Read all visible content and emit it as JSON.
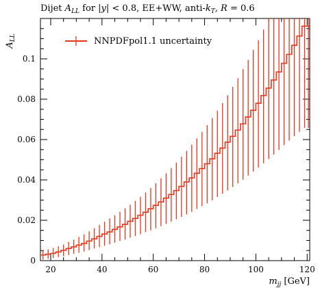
{
  "chart_data": {
    "type": "line",
    "title": "Dijet A_LL for |y| < 0.8, EE+WW, anti-k_T, R = 0.6",
    "xlabel": "m_jj [GeV]",
    "ylabel": "A_LL",
    "xlim": [
      16,
      121
    ],
    "ylim": [
      0,
      0.12
    ],
    "x_ticks": [
      20,
      40,
      60,
      80,
      100,
      120
    ],
    "y_ticks": [
      0,
      0.02,
      0.04,
      0.06,
      0.08,
      0.1
    ],
    "x_tick_labels": [
      "20",
      "40",
      "60",
      "80",
      "100",
      "120"
    ],
    "y_tick_labels": [
      "0",
      "0.02",
      "0.04",
      "0.06",
      "0.08",
      "0.1"
    ],
    "legend": {
      "position": "top-left",
      "entries": [
        "NNPDFpol1.1 uncertainty"
      ]
    },
    "series": [
      {
        "name": "NNPDFpol1.1 uncertainty",
        "color": "#e8351a",
        "bin_edges": [
          16,
          18,
          20,
          22,
          24,
          26,
          28,
          30,
          32,
          34,
          36,
          38,
          40,
          42,
          44,
          46,
          48,
          50,
          52,
          54,
          56,
          58,
          60,
          62,
          64,
          66,
          68,
          70,
          72,
          74,
          76,
          78,
          80,
          82,
          84,
          86,
          88,
          90,
          92,
          94,
          96,
          98,
          100,
          102,
          104,
          106,
          108,
          110,
          112,
          114,
          116,
          118,
          120,
          121
        ],
        "central": [
          0.0028,
          0.0032,
          0.0036,
          0.0043,
          0.0051,
          0.006,
          0.0068,
          0.0077,
          0.0085,
          0.0097,
          0.0108,
          0.012,
          0.0132,
          0.0142,
          0.0155,
          0.0167,
          0.018,
          0.0195,
          0.0209,
          0.0225,
          0.024,
          0.0257,
          0.0274,
          0.0291,
          0.031,
          0.0328,
          0.0347,
          0.0368,
          0.039,
          0.041,
          0.0433,
          0.0456,
          0.048,
          0.0505,
          0.0532,
          0.0558,
          0.0587,
          0.0616,
          0.0647,
          0.0678,
          0.0712,
          0.0745,
          0.078,
          0.0818,
          0.0855,
          0.0895,
          0.0935,
          0.0978,
          0.1022,
          0.1067,
          0.1113,
          0.1162,
          0.1162
        ],
        "low": [
          0.0005,
          0.0009,
          0.0013,
          0.0017,
          0.0022,
          0.0028,
          0.0034,
          0.0039,
          0.0045,
          0.0052,
          0.006,
          0.0067,
          0.0074,
          0.0081,
          0.0089,
          0.0097,
          0.0105,
          0.0113,
          0.0122,
          0.0131,
          0.0141,
          0.015,
          0.016,
          0.0171,
          0.0182,
          0.0193,
          0.0205,
          0.0217,
          0.0229,
          0.0242,
          0.0256,
          0.027,
          0.0284,
          0.0299,
          0.0315,
          0.0331,
          0.0348,
          0.0365,
          0.0383,
          0.0401,
          0.0421,
          0.0441,
          0.0461,
          0.0482,
          0.0503,
          0.0525,
          0.0548,
          0.0572,
          0.0595,
          0.0617,
          0.0638,
          0.0658,
          0.0658
        ],
        "high": [
          0.0052,
          0.0056,
          0.0063,
          0.0071,
          0.008,
          0.0093,
          0.0104,
          0.0118,
          0.013,
          0.0145,
          0.0161,
          0.0177,
          0.0193,
          0.0209,
          0.0225,
          0.0242,
          0.0259,
          0.0277,
          0.0296,
          0.0317,
          0.0338,
          0.036,
          0.0384,
          0.0408,
          0.0433,
          0.0459,
          0.0486,
          0.0515,
          0.0544,
          0.0575,
          0.0606,
          0.0638,
          0.0671,
          0.0707,
          0.0743,
          0.0781,
          0.082,
          0.0861,
          0.0904,
          0.095,
          0.0995,
          0.1045,
          0.1092,
          0.1145,
          0.12,
          0.12,
          0.12,
          0.12,
          0.12,
          0.12,
          0.12,
          0.12,
          0.12
        ]
      }
    ]
  }
}
